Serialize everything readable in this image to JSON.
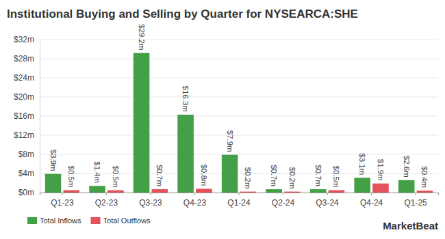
{
  "chart_data": {
    "type": "bar",
    "title": "Institutional Buying and Selling by Quarter for NYSEARCA:SHE",
    "categories": [
      "Q1-23",
      "Q2-23",
      "Q3-23",
      "Q4-23",
      "Q1-24",
      "Q2-24",
      "Q3-24",
      "Q4-24",
      "Q1-25"
    ],
    "series": [
      {
        "name": "Total Inflows",
        "color": "#43a047",
        "values": [
          3.9,
          1.4,
          29.2,
          16.3,
          7.9,
          0.7,
          0.7,
          3.1,
          2.6
        ],
        "value_labels": [
          "$3.9m",
          "$1.4m",
          "$29.2m",
          "$16.3m",
          "$7.9m",
          "$0.7m",
          "$0.7m",
          "$3.1m",
          "$2.6m"
        ]
      },
      {
        "name": "Total Outflows",
        "color": "#e2535b",
        "values": [
          0.5,
          0.5,
          0.7,
          0.8,
          0.2,
          0.2,
          0.5,
          1.9,
          0.4
        ],
        "value_labels": [
          "$0.5m",
          "$0.5m",
          "$0.7m",
          "$0.8m",
          "$0.2m",
          "$0.2m",
          "$0.5m",
          "$1.9m",
          "$0.4m"
        ]
      }
    ],
    "ylim": [
      0,
      32
    ],
    "yticks": [
      {
        "value": 0,
        "label": "$0m"
      },
      {
        "value": 4,
        "label": "$4m"
      },
      {
        "value": 8,
        "label": "$8m"
      },
      {
        "value": 12,
        "label": "$12m"
      },
      {
        "value": 16,
        "label": "$16m"
      },
      {
        "value": 20,
        "label": "$20m"
      },
      {
        "value": 24,
        "label": "$24m"
      },
      {
        "value": 28,
        "label": "$28m"
      },
      {
        "value": 32,
        "label": "$32m"
      }
    ],
    "grid": true,
    "data_labels": true,
    "legend": "bottom-left",
    "annotations": [
      "MarketBeat"
    ]
  }
}
